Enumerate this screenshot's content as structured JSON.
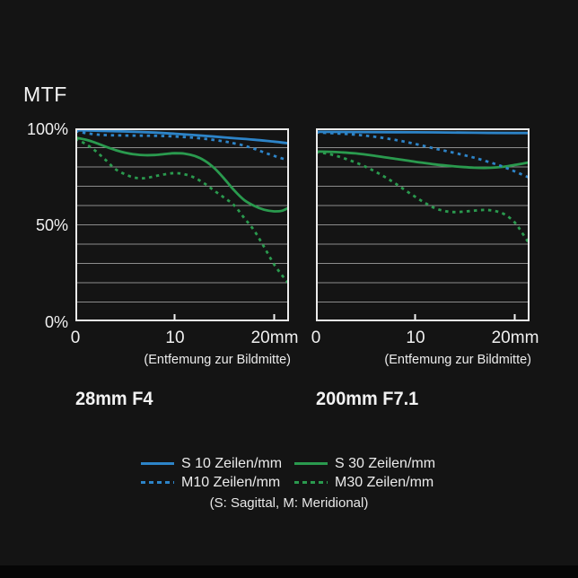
{
  "labels": {
    "mtf": "MTF"
  },
  "colors": {
    "background": "#141414",
    "blue": "#2d84c8",
    "green": "#2a9a4e",
    "gridline": "#8c8c8c",
    "border": "#ebebeb",
    "tick": "#f2f2f2",
    "text": "#f2f2f2"
  },
  "legend": {
    "items": [
      {
        "label": "S 10 Zeilen/mm",
        "color": "#2d84c8",
        "style": "solid"
      },
      {
        "label": "S 30 Zeilen/mm",
        "color": "#2a9a4e",
        "style": "solid"
      },
      {
        "label": "M10 Zeilen/mm",
        "color": "#2d84c8",
        "style": "dashed"
      },
      {
        "label": "M30 Zeilen/mm",
        "color": "#2a9a4e",
        "style": "dashed"
      }
    ],
    "note": "(S: Sagittal, M: Meridional)"
  },
  "chart_data": [
    {
      "type": "line",
      "title": "28mm F4",
      "ylabel": "MTF",
      "xlabel": "(Entfemung zur Bildmitte)",
      "xlim": [
        0,
        21.5
      ],
      "ylim": [
        0,
        100
      ],
      "x_tick_values": [
        0,
        10,
        20
      ],
      "x_tick_labels": [
        "0",
        "10",
        "20mm"
      ],
      "y_tick_values": [
        100,
        50,
        0
      ],
      "y_tick_labels": [
        "100%",
        "50%",
        "0%"
      ],
      "grid_step_percent": 10,
      "legend_position": "below-figure",
      "series": [
        {
          "name": "S 10 Zeilen/mm",
          "color": "#2d84c8",
          "style": "solid",
          "points": [
            [
              0,
              99
            ],
            [
              2,
              98.8
            ],
            [
              4,
              98.5
            ],
            [
              6,
              98.2
            ],
            [
              8,
              97.8
            ],
            [
              10,
              97.2
            ],
            [
              12,
              96.5
            ],
            [
              14,
              95.7
            ],
            [
              16,
              94.9
            ],
            [
              18,
              94.1
            ],
            [
              20,
              93.1
            ],
            [
              21.5,
              92.2
            ]
          ]
        },
        {
          "name": "M10 Zeilen/mm",
          "color": "#2d84c8",
          "style": "dashed",
          "points": [
            [
              0,
              98.6
            ],
            [
              1,
              97.6
            ],
            [
              2,
              96.9
            ],
            [
              3,
              96.5
            ],
            [
              5,
              96.3
            ],
            [
              7,
              96.2
            ],
            [
              9,
              96
            ],
            [
              11,
              95.5
            ],
            [
              13,
              94.6
            ],
            [
              15,
              93.2
            ],
            [
              16,
              92.2
            ],
            [
              17,
              91
            ],
            [
              18,
              89.4
            ],
            [
              19,
              87.5
            ],
            [
              20,
              85.7
            ],
            [
              21.5,
              83.3
            ]
          ]
        },
        {
          "name": "S 30 Zeilen/mm",
          "color": "#2a9a4e",
          "style": "solid",
          "points": [
            [
              0,
              95.2
            ],
            [
              1,
              94.2
            ],
            [
              2,
              92.6
            ],
            [
              3,
              90.6
            ],
            [
              4,
              88.8
            ],
            [
              5,
              87.4
            ],
            [
              6,
              86.5
            ],
            [
              7,
              86.1
            ],
            [
              8,
              86.2
            ],
            [
              9,
              86.7
            ],
            [
              10,
              87.1
            ],
            [
              11,
              86.9
            ],
            [
              12,
              85.7
            ],
            [
              13,
              83.3
            ],
            [
              14,
              79.3
            ],
            [
              15,
              73.8
            ],
            [
              16,
              67.8
            ],
            [
              17,
              62.8
            ],
            [
              18,
              59.8
            ],
            [
              19,
              57.8
            ],
            [
              20,
              57
            ],
            [
              20.8,
              57.3
            ],
            [
              21.5,
              59
            ]
          ]
        },
        {
          "name": "M30 Zeilen/mm",
          "color": "#2a9a4e",
          "style": "dashed",
          "points": [
            [
              0,
              94.6
            ],
            [
              1,
              92
            ],
            [
              2,
              88.4
            ],
            [
              3,
              83.8
            ],
            [
              4,
              79
            ],
            [
              5,
              76.2
            ],
            [
              6,
              74.4
            ],
            [
              7,
              74.2
            ],
            [
              8,
              75.2
            ],
            [
              9,
              76.2
            ],
            [
              10,
              76.8
            ],
            [
              11,
              76.2
            ],
            [
              12,
              74.4
            ],
            [
              13,
              71.4
            ],
            [
              14,
              67.6
            ],
            [
              15,
              64
            ],
            [
              16,
              60
            ],
            [
              17,
              53.5
            ],
            [
              18,
              47
            ],
            [
              19,
              38.5
            ],
            [
              20,
              29.5
            ],
            [
              21,
              22.5
            ],
            [
              21.5,
              19.5
            ]
          ]
        }
      ]
    },
    {
      "type": "line",
      "title": "200mm F7.1",
      "ylabel": "MTF",
      "xlabel": "(Entfemung zur Bildmitte)",
      "xlim": [
        0,
        21.5
      ],
      "ylim": [
        0,
        100
      ],
      "x_tick_values": [
        0,
        10,
        20
      ],
      "x_tick_labels": [
        "0",
        "10",
        "20mm"
      ],
      "y_tick_values": [
        100,
        50,
        0
      ],
      "y_tick_labels": [
        "100%",
        "50%",
        "0%"
      ],
      "grid_step_percent": 10,
      "legend_position": "below-figure",
      "series": [
        {
          "name": "S 10 Zeilen/mm",
          "color": "#2d84c8",
          "style": "solid",
          "points": [
            [
              0,
              98.2
            ],
            [
              4,
              98.1
            ],
            [
              8,
              98
            ],
            [
              12,
              97.9
            ],
            [
              16,
              97.7
            ],
            [
              20,
              97.6
            ],
            [
              21.5,
              97.6
            ]
          ]
        },
        {
          "name": "M10 Zeilen/mm",
          "color": "#2d84c8",
          "style": "dashed",
          "points": [
            [
              0,
              97.9
            ],
            [
              2,
              97.4
            ],
            [
              4,
              96.7
            ],
            [
              6,
              95.6
            ],
            [
              8,
              94
            ],
            [
              10,
              91.9
            ],
            [
              12,
              89.5
            ],
            [
              14,
              87.2
            ],
            [
              16,
              84.7
            ],
            [
              18,
              81.6
            ],
            [
              19,
              79.8
            ],
            [
              20,
              77.7
            ],
            [
              21.5,
              74.4
            ]
          ]
        },
        {
          "name": "S 30 Zeilen/mm",
          "color": "#2a9a4e",
          "style": "solid",
          "points": [
            [
              0,
              88
            ],
            [
              2,
              87.7
            ],
            [
              4,
              87
            ],
            [
              6,
              85.7
            ],
            [
              8,
              84.2
            ],
            [
              10,
              82.7
            ],
            [
              12,
              81.3
            ],
            [
              14,
              80.3
            ],
            [
              15,
              79.9
            ],
            [
              16,
              79.6
            ],
            [
              17,
              79.5
            ],
            [
              18,
              79.7
            ],
            [
              19,
              80.2
            ],
            [
              20,
              81
            ],
            [
              21.5,
              82.4
            ]
          ]
        },
        {
          "name": "M30 Zeilen/mm",
          "color": "#2a9a4e",
          "style": "dashed",
          "points": [
            [
              0,
              87.7
            ],
            [
              1,
              87
            ],
            [
              2,
              85.8
            ],
            [
              3,
              84.2
            ],
            [
              4,
              82.3
            ],
            [
              5,
              80.1
            ],
            [
              6,
              77.5
            ],
            [
              7,
              74.6
            ],
            [
              8,
              71.4
            ],
            [
              9,
              67.9
            ],
            [
              10,
              64.5
            ],
            [
              11,
              61.3
            ],
            [
              12,
              58.6
            ],
            [
              13,
              57.1
            ],
            [
              14,
              56.6
            ],
            [
              15,
              56.9
            ],
            [
              16,
              57.4
            ],
            [
              17,
              57.7
            ],
            [
              18,
              57.2
            ],
            [
              19,
              55.4
            ],
            [
              20,
              51.3
            ],
            [
              20.7,
              46.3
            ],
            [
              21.5,
              40
            ]
          ]
        }
      ]
    }
  ]
}
